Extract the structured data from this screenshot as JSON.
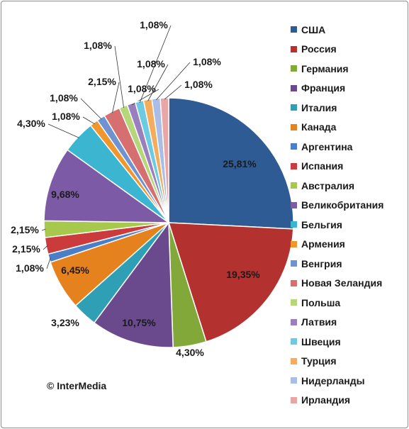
{
  "chart_data": {
    "type": "pie",
    "slices": [
      {
        "name": "США",
        "value": 25.81,
        "label": "25,81%",
        "color": "#2e5b94"
      },
      {
        "name": "Россия",
        "value": 19.35,
        "label": "19,35%",
        "color": "#b3312e"
      },
      {
        "name": "Германия",
        "value": 4.3,
        "label": "4,30%",
        "color": "#83a83a"
      },
      {
        "name": "Франция",
        "value": 10.75,
        "label": "10,75%",
        "color": "#6a4a8c"
      },
      {
        "name": "Италия",
        "value": 3.23,
        "label": "3,23%",
        "color": "#2e9fb5"
      },
      {
        "name": "Канада",
        "value": 6.45,
        "label": "6,45%",
        "color": "#e6821e"
      },
      {
        "name": "Аргентина",
        "value": 1.08,
        "label": "1,08%",
        "color": "#4a7ec7"
      },
      {
        "name": "Испания",
        "value": 2.15,
        "label": "2,15%",
        "color": "#cc3b3b"
      },
      {
        "name": "Австралия",
        "value": 2.15,
        "label": "2,15%",
        "color": "#a6c94d"
      },
      {
        "name": "Великобритания",
        "value": 9.68,
        "label": "9,68%",
        "color": "#7d5aa6"
      },
      {
        "name": "Бельгия",
        "value": 4.3,
        "label": "4,30%",
        "color": "#3cb6d0"
      },
      {
        "name": "Армения",
        "value": 1.08,
        "label": "1,08%",
        "color": "#f0962e"
      },
      {
        "name": "Венгрия",
        "value": 1.08,
        "label": "1,08%",
        "color": "#6f93d1"
      },
      {
        "name": "Новая Зеландия",
        "value": 2.15,
        "label": "2,15%",
        "color": "#d66f6f"
      },
      {
        "name": "Польша",
        "value": 1.08,
        "label": "1,08%",
        "color": "#b6d67a"
      },
      {
        "name": "Латвия",
        "value": 1.08,
        "label": "1,08%",
        "color": "#9a7fbf"
      },
      {
        "name": "Швеция",
        "value": 1.08,
        "label": "1,08%",
        "color": "#6ccbe0"
      },
      {
        "name": "Турция",
        "value": 1.08,
        "label": "1,08%",
        "color": "#f5ac5c"
      },
      {
        "name": "Нидерланды",
        "value": 1.08,
        "label": "1,08%",
        "color": "#a9bde6"
      },
      {
        "name": "Ирландия",
        "value": 1.08,
        "label": "1,08%",
        "color": "#e8a6a6"
      }
    ],
    "legend_placement": "right"
  },
  "credit": "© InterMedia"
}
